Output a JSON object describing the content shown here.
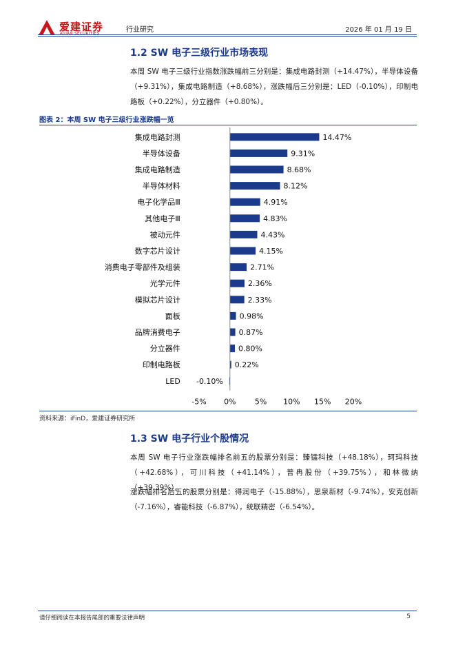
{
  "header": {
    "brand_cn": "爱建证券",
    "brand_en": "AIJIAN SECURITIES",
    "category": "行业研究",
    "date": "2026 年 01 月 19 日",
    "accent_color": "#c8161d",
    "rule_color": "#1b3a8c"
  },
  "section1": {
    "title": "1.2 SW 电子三级行业市场表现",
    "paragraph": "本周 SW 电子三级行业指数涨跌幅前三分别是：集成电路封测（+14.47%），半导体设备（+9.31%），集成电路制造（+8.68%），涨跌幅后三分别是：LED（-0.10%），印制电路板（+0.22%），分立器件（+0.80%）。"
  },
  "figure": {
    "title": "图表 2：本周 SW 电子三级行业涨跌幅一览",
    "source": "资料来源：iFinD，爱建证券研究所"
  },
  "chart_data": {
    "type": "bar",
    "orientation": "horizontal",
    "title": "本周 SW 电子三级行业涨跌幅一览",
    "categories": [
      "集成电路封测",
      "半导体设备",
      "集成电路制造",
      "半导体材料",
      "电子化学品Ⅲ",
      "其他电子Ⅲ",
      "被动元件",
      "数字芯片设计",
      "消费电子零部件及组装",
      "光学元件",
      "模拟芯片设计",
      "面板",
      "品牌消费电子",
      "分立器件",
      "印制电路板",
      "LED"
    ],
    "values": [
      14.47,
      9.31,
      8.68,
      8.12,
      4.91,
      4.83,
      4.43,
      4.15,
      2.71,
      2.36,
      2.33,
      0.98,
      0.87,
      0.8,
      0.22,
      -0.1
    ],
    "labels": [
      "14.47%",
      "9.31%",
      "8.68%",
      "8.12%",
      "4.91%",
      "4.83%",
      "4.43%",
      "4.15%",
      "2.71%",
      "2.36%",
      "2.33%",
      "0.98%",
      "0.87%",
      "0.80%",
      "0.22%",
      "-0.10%"
    ],
    "xlim": [
      -5,
      20
    ],
    "xticks": [
      -5,
      0,
      5,
      10,
      15,
      20
    ],
    "xtick_labels": [
      "-5%",
      "0%",
      "5%",
      "10%",
      "15%",
      "20%"
    ],
    "bar_color": "#1b3a8c",
    "grid": false
  },
  "section2": {
    "title": "1.3 SW 电子行业个股情况",
    "paragraph1": "本周 SW 电子行业涨跌幅排名前五的股票分别是：臻镭科技（+48.18%），珂玛科技（+42.68%），可川科技（+41.14%），普冉股份（+39.75%），和林微纳（+39.39%）。",
    "paragraph2": "涨跌幅排名后五的股票分别是：得润电子（-15.88%），思泉新材（-9.74%），安克创新（-7.16%），睿能科技（-6.87%），统联精密（-6.54%）。"
  },
  "footer": {
    "disclaimer": "请仔细阅读在本报告尾部的重要法律声明",
    "page": "5"
  }
}
